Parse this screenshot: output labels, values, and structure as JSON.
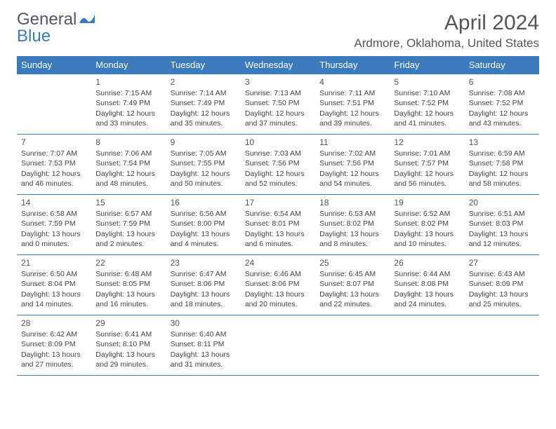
{
  "logo": {
    "general": "General",
    "blue": "Blue",
    "icon_color": "#3a7abd"
  },
  "header": {
    "title": "April 2024",
    "location": "Ardmore, Oklahoma, United States"
  },
  "styling": {
    "header_bg": "#3a7abd",
    "header_fg": "#ffffff",
    "border_color": "#3a7abd",
    "text_color": "#444",
    "title_color": "#555",
    "body_font_size_pt": 8,
    "title_font_size_pt": 22,
    "columns": 7,
    "rows": 5
  },
  "weekdays": [
    "Sunday",
    "Monday",
    "Tuesday",
    "Wednesday",
    "Thursday",
    "Friday",
    "Saturday"
  ],
  "weeks": [
    [
      null,
      {
        "day": "1",
        "sunrise": "Sunrise: 7:15 AM",
        "sunset": "Sunset: 7:49 PM",
        "daylight1": "Daylight: 12 hours",
        "daylight2": "and 33 minutes."
      },
      {
        "day": "2",
        "sunrise": "Sunrise: 7:14 AM",
        "sunset": "Sunset: 7:49 PM",
        "daylight1": "Daylight: 12 hours",
        "daylight2": "and 35 minutes."
      },
      {
        "day": "3",
        "sunrise": "Sunrise: 7:13 AM",
        "sunset": "Sunset: 7:50 PM",
        "daylight1": "Daylight: 12 hours",
        "daylight2": "and 37 minutes."
      },
      {
        "day": "4",
        "sunrise": "Sunrise: 7:11 AM",
        "sunset": "Sunset: 7:51 PM",
        "daylight1": "Daylight: 12 hours",
        "daylight2": "and 39 minutes."
      },
      {
        "day": "5",
        "sunrise": "Sunrise: 7:10 AM",
        "sunset": "Sunset: 7:52 PM",
        "daylight1": "Daylight: 12 hours",
        "daylight2": "and 41 minutes."
      },
      {
        "day": "6",
        "sunrise": "Sunrise: 7:08 AM",
        "sunset": "Sunset: 7:52 PM",
        "daylight1": "Daylight: 12 hours",
        "daylight2": "and 43 minutes."
      }
    ],
    [
      {
        "day": "7",
        "sunrise": "Sunrise: 7:07 AM",
        "sunset": "Sunset: 7:53 PM",
        "daylight1": "Daylight: 12 hours",
        "daylight2": "and 46 minutes."
      },
      {
        "day": "8",
        "sunrise": "Sunrise: 7:06 AM",
        "sunset": "Sunset: 7:54 PM",
        "daylight1": "Daylight: 12 hours",
        "daylight2": "and 48 minutes."
      },
      {
        "day": "9",
        "sunrise": "Sunrise: 7:05 AM",
        "sunset": "Sunset: 7:55 PM",
        "daylight1": "Daylight: 12 hours",
        "daylight2": "and 50 minutes."
      },
      {
        "day": "10",
        "sunrise": "Sunrise: 7:03 AM",
        "sunset": "Sunset: 7:56 PM",
        "daylight1": "Daylight: 12 hours",
        "daylight2": "and 52 minutes."
      },
      {
        "day": "11",
        "sunrise": "Sunrise: 7:02 AM",
        "sunset": "Sunset: 7:56 PM",
        "daylight1": "Daylight: 12 hours",
        "daylight2": "and 54 minutes."
      },
      {
        "day": "12",
        "sunrise": "Sunrise: 7:01 AM",
        "sunset": "Sunset: 7:57 PM",
        "daylight1": "Daylight: 12 hours",
        "daylight2": "and 56 minutes."
      },
      {
        "day": "13",
        "sunrise": "Sunrise: 6:59 AM",
        "sunset": "Sunset: 7:58 PM",
        "daylight1": "Daylight: 12 hours",
        "daylight2": "and 58 minutes."
      }
    ],
    [
      {
        "day": "14",
        "sunrise": "Sunrise: 6:58 AM",
        "sunset": "Sunset: 7:59 PM",
        "daylight1": "Daylight: 13 hours",
        "daylight2": "and 0 minutes."
      },
      {
        "day": "15",
        "sunrise": "Sunrise: 6:57 AM",
        "sunset": "Sunset: 7:59 PM",
        "daylight1": "Daylight: 13 hours",
        "daylight2": "and 2 minutes."
      },
      {
        "day": "16",
        "sunrise": "Sunrise: 6:56 AM",
        "sunset": "Sunset: 8:00 PM",
        "daylight1": "Daylight: 13 hours",
        "daylight2": "and 4 minutes."
      },
      {
        "day": "17",
        "sunrise": "Sunrise: 6:54 AM",
        "sunset": "Sunset: 8:01 PM",
        "daylight1": "Daylight: 13 hours",
        "daylight2": "and 6 minutes."
      },
      {
        "day": "18",
        "sunrise": "Sunrise: 6:53 AM",
        "sunset": "Sunset: 8:02 PM",
        "daylight1": "Daylight: 13 hours",
        "daylight2": "and 8 minutes."
      },
      {
        "day": "19",
        "sunrise": "Sunrise: 6:52 AM",
        "sunset": "Sunset: 8:02 PM",
        "daylight1": "Daylight: 13 hours",
        "daylight2": "and 10 minutes."
      },
      {
        "day": "20",
        "sunrise": "Sunrise: 6:51 AM",
        "sunset": "Sunset: 8:03 PM",
        "daylight1": "Daylight: 13 hours",
        "daylight2": "and 12 minutes."
      }
    ],
    [
      {
        "day": "21",
        "sunrise": "Sunrise: 6:50 AM",
        "sunset": "Sunset: 8:04 PM",
        "daylight1": "Daylight: 13 hours",
        "daylight2": "and 14 minutes."
      },
      {
        "day": "22",
        "sunrise": "Sunrise: 6:48 AM",
        "sunset": "Sunset: 8:05 PM",
        "daylight1": "Daylight: 13 hours",
        "daylight2": "and 16 minutes."
      },
      {
        "day": "23",
        "sunrise": "Sunrise: 6:47 AM",
        "sunset": "Sunset: 8:06 PM",
        "daylight1": "Daylight: 13 hours",
        "daylight2": "and 18 minutes."
      },
      {
        "day": "24",
        "sunrise": "Sunrise: 6:46 AM",
        "sunset": "Sunset: 8:06 PM",
        "daylight1": "Daylight: 13 hours",
        "daylight2": "and 20 minutes."
      },
      {
        "day": "25",
        "sunrise": "Sunrise: 6:45 AM",
        "sunset": "Sunset: 8:07 PM",
        "daylight1": "Daylight: 13 hours",
        "daylight2": "and 22 minutes."
      },
      {
        "day": "26",
        "sunrise": "Sunrise: 6:44 AM",
        "sunset": "Sunset: 8:08 PM",
        "daylight1": "Daylight: 13 hours",
        "daylight2": "and 24 minutes."
      },
      {
        "day": "27",
        "sunrise": "Sunrise: 6:43 AM",
        "sunset": "Sunset: 8:09 PM",
        "daylight1": "Daylight: 13 hours",
        "daylight2": "and 25 minutes."
      }
    ],
    [
      {
        "day": "28",
        "sunrise": "Sunrise: 6:42 AM",
        "sunset": "Sunset: 8:09 PM",
        "daylight1": "Daylight: 13 hours",
        "daylight2": "and 27 minutes."
      },
      {
        "day": "29",
        "sunrise": "Sunrise: 6:41 AM",
        "sunset": "Sunset: 8:10 PM",
        "daylight1": "Daylight: 13 hours",
        "daylight2": "and 29 minutes."
      },
      {
        "day": "30",
        "sunrise": "Sunrise: 6:40 AM",
        "sunset": "Sunset: 8:11 PM",
        "daylight1": "Daylight: 13 hours",
        "daylight2": "and 31 minutes."
      },
      null,
      null,
      null,
      null
    ]
  ]
}
